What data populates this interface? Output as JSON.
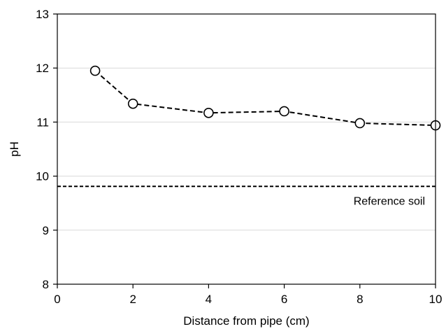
{
  "chart_data": {
    "type": "line",
    "xlabel": "Distance from pipe (cm)",
    "ylabel": "pH",
    "xlim": [
      0,
      10
    ],
    "ylim": [
      8,
      13
    ],
    "xticks": [
      0,
      2,
      4,
      6,
      8,
      10
    ],
    "yticks": [
      8,
      9,
      10,
      11,
      12,
      13
    ],
    "grid": "horizontal",
    "series": [
      {
        "x": [
          1,
          2,
          4,
          6,
          8,
          10
        ],
        "y": [
          11.95,
          11.34,
          11.17,
          11.2,
          10.98,
          10.94
        ],
        "line_style": "dashed",
        "marker": "open-circle",
        "color": "#000000"
      }
    ],
    "annotations": [
      {
        "type": "horizontal-line",
        "y": 9.81,
        "label": "Reference soil",
        "line_style": "dashed",
        "color": "#000000"
      }
    ]
  }
}
